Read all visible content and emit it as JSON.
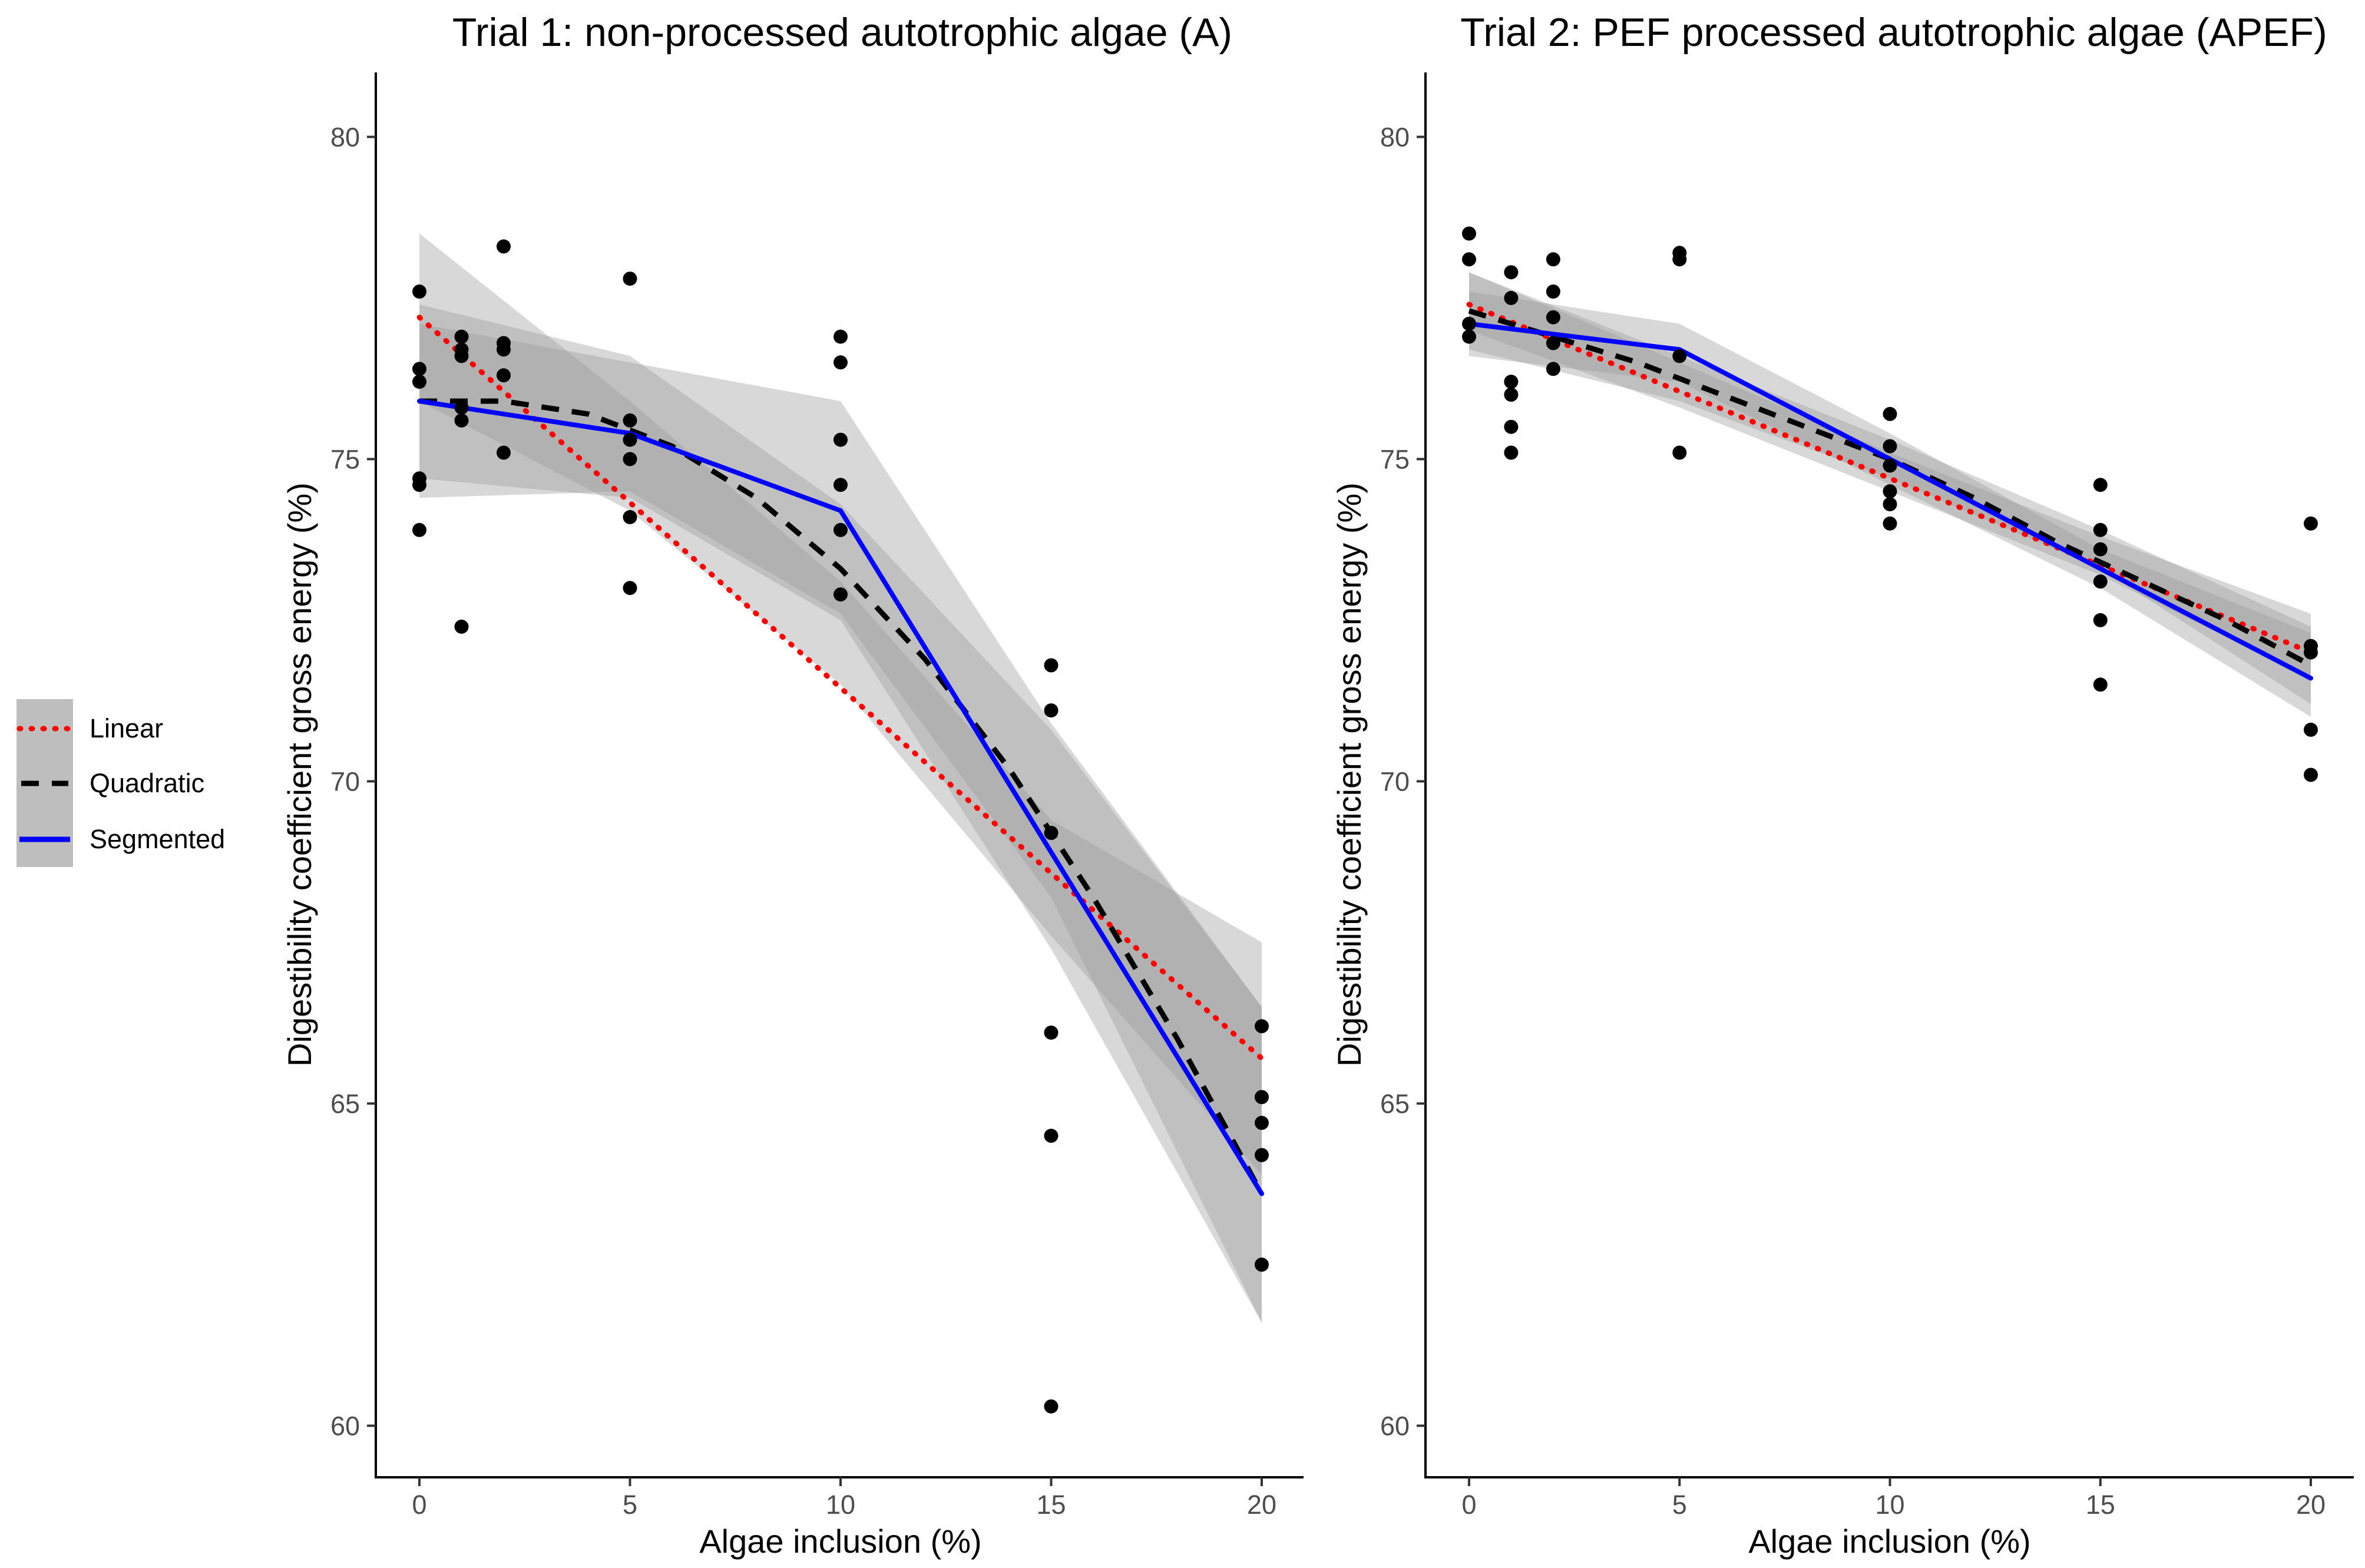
{
  "chart_data": [
    {
      "type": "scatter",
      "title": "Trial 1: non-processed autotrophic algae (A)",
      "xlabel": "Algae inclusion (%)",
      "ylabel": "Digestibility coefficient gross energy (%)",
      "xlim": [
        -1,
        21
      ],
      "ylim": [
        59.2,
        81
      ],
      "xticks": [
        0,
        5,
        10,
        15,
        20
      ],
      "yticks": [
        60,
        65,
        70,
        75,
        80
      ],
      "points": [
        {
          "x": 0,
          "y": 77.6
        },
        {
          "x": 0,
          "y": 76.4
        },
        {
          "x": 0,
          "y": 76.2
        },
        {
          "x": 0,
          "y": 74.7
        },
        {
          "x": 0,
          "y": 74.6
        },
        {
          "x": 0,
          "y": 73.9
        },
        {
          "x": 1,
          "y": 76.9
        },
        {
          "x": 1,
          "y": 76.7
        },
        {
          "x": 1,
          "y": 76.6
        },
        {
          "x": 1,
          "y": 75.8
        },
        {
          "x": 1,
          "y": 75.6
        },
        {
          "x": 1,
          "y": 72.4
        },
        {
          "x": 2,
          "y": 78.3
        },
        {
          "x": 2,
          "y": 76.8
        },
        {
          "x": 2,
          "y": 76.7
        },
        {
          "x": 2,
          "y": 76.3
        },
        {
          "x": 2,
          "y": 75.1
        },
        {
          "x": 5,
          "y": 77.8
        },
        {
          "x": 5,
          "y": 75.6
        },
        {
          "x": 5,
          "y": 75.3
        },
        {
          "x": 5,
          "y": 75.0
        },
        {
          "x": 5,
          "y": 74.1
        },
        {
          "x": 5,
          "y": 73.0
        },
        {
          "x": 10,
          "y": 76.9
        },
        {
          "x": 10,
          "y": 76.5
        },
        {
          "x": 10,
          "y": 75.3
        },
        {
          "x": 10,
          "y": 74.6
        },
        {
          "x": 10,
          "y": 73.9
        },
        {
          "x": 10,
          "y": 72.9
        },
        {
          "x": 15,
          "y": 71.8
        },
        {
          "x": 15,
          "y": 71.1
        },
        {
          "x": 15,
          "y": 69.2
        },
        {
          "x": 15,
          "y": 66.1
        },
        {
          "x": 15,
          "y": 64.5
        },
        {
          "x": 15,
          "y": 60.3
        },
        {
          "x": 20,
          "y": 66.2
        },
        {
          "x": 20,
          "y": 65.1
        },
        {
          "x": 20,
          "y": 64.7
        },
        {
          "x": 20,
          "y": 64.2
        },
        {
          "x": 20,
          "y": 62.5
        }
      ],
      "series": [
        {
          "name": "Linear",
          "style": "dotted",
          "color": "#ff0000",
          "x": [
            0,
            20
          ],
          "y": [
            77.2,
            65.7
          ]
        },
        {
          "name": "Quadratic",
          "style": "dashed",
          "color": "#000000",
          "x": [
            0,
            2,
            4,
            6,
            8,
            10,
            12,
            14,
            16,
            18,
            20
          ],
          "y": [
            75.9,
            75.9,
            75.7,
            75.2,
            74.4,
            73.3,
            71.9,
            70.2,
            68.2,
            66.0,
            63.6
          ]
        },
        {
          "name": "Segmented",
          "style": "solid",
          "color": "#0000ff",
          "x": [
            0,
            5,
            10,
            20
          ],
          "y": [
            75.9,
            75.4,
            74.2,
            63.6
          ]
        }
      ],
      "confidence_bands": [
        {
          "series": "Linear",
          "x": [
            0,
            5,
            10,
            15,
            20
          ],
          "lower": [
            75.9,
            74.2,
            71.5,
            67.6,
            63.9
          ],
          "upper": [
            78.5,
            75.9,
            73.1,
            69.4,
            67.5
          ]
        },
        {
          "series": "Quadratic",
          "x": [
            0,
            5,
            10,
            15,
            20
          ],
          "lower": [
            74.4,
            74.5,
            72.6,
            68.2,
            61.6
          ],
          "upper": [
            77.4,
            76.6,
            74.3,
            70.8,
            66.5
          ]
        },
        {
          "series": "Segmented",
          "x": [
            0,
            5,
            10,
            15,
            20
          ],
          "lower": [
            74.7,
            74.4,
            72.5,
            67.4,
            61.6
          ],
          "upper": [
            77.1,
            76.5,
            75.9,
            70.9,
            66.5
          ]
        }
      ]
    },
    {
      "type": "scatter",
      "title": "Trial 2: PEF processed autotrophic algae (APEF)",
      "xlabel": "Algae inclusion (%)",
      "ylabel": "Digestibility coefficient gross energy (%)",
      "xlim": [
        -1,
        21
      ],
      "ylim": [
        59.2,
        81
      ],
      "xticks": [
        0,
        5,
        10,
        15,
        20
      ],
      "yticks": [
        60,
        65,
        70,
        75,
        80
      ],
      "points": [
        {
          "x": 0,
          "y": 78.5
        },
        {
          "x": 0,
          "y": 78.1
        },
        {
          "x": 0,
          "y": 77.1
        },
        {
          "x": 0,
          "y": 76.9
        },
        {
          "x": 1,
          "y": 77.9
        },
        {
          "x": 1,
          "y": 77.5
        },
        {
          "x": 1,
          "y": 76.2
        },
        {
          "x": 1,
          "y": 76.0
        },
        {
          "x": 1,
          "y": 75.5
        },
        {
          "x": 1,
          "y": 75.1
        },
        {
          "x": 2,
          "y": 78.1
        },
        {
          "x": 2,
          "y": 77.6
        },
        {
          "x": 2,
          "y": 77.2
        },
        {
          "x": 2,
          "y": 76.8
        },
        {
          "x": 2,
          "y": 76.4
        },
        {
          "x": 5,
          "y": 78.2
        },
        {
          "x": 5,
          "y": 78.1
        },
        {
          "x": 5,
          "y": 76.6
        },
        {
          "x": 5,
          "y": 75.1
        },
        {
          "x": 10,
          "y": 75.7
        },
        {
          "x": 10,
          "y": 75.2
        },
        {
          "x": 10,
          "y": 74.9
        },
        {
          "x": 10,
          "y": 74.5
        },
        {
          "x": 10,
          "y": 74.3
        },
        {
          "x": 10,
          "y": 74.0
        },
        {
          "x": 15,
          "y": 74.6
        },
        {
          "x": 15,
          "y": 73.9
        },
        {
          "x": 15,
          "y": 73.6
        },
        {
          "x": 15,
          "y": 73.1
        },
        {
          "x": 15,
          "y": 72.5
        },
        {
          "x": 15,
          "y": 71.5
        },
        {
          "x": 20,
          "y": 74.0
        },
        {
          "x": 20,
          "y": 72.1
        },
        {
          "x": 20,
          "y": 72.0
        },
        {
          "x": 20,
          "y": 70.8
        },
        {
          "x": 20,
          "y": 70.1
        }
      ],
      "series": [
        {
          "name": "Linear",
          "style": "dotted",
          "color": "#ff0000",
          "x": [
            0,
            20
          ],
          "y": [
            77.4,
            72.0
          ]
        },
        {
          "name": "Quadratic",
          "style": "dashed",
          "color": "#000000",
          "x": [
            0,
            2,
            4,
            6,
            8,
            10,
            12,
            14,
            16,
            18,
            20
          ],
          "y": [
            77.3,
            76.9,
            76.5,
            76.0,
            75.5,
            75.0,
            74.4,
            73.7,
            73.1,
            72.5,
            71.8
          ]
        },
        {
          "name": "Segmented",
          "style": "solid",
          "color": "#0000ff",
          "x": [
            0,
            5,
            20
          ],
          "y": [
            77.1,
            76.7,
            71.6
          ]
        }
      ],
      "confidence_bands": [
        {
          "series": "Linear",
          "x": [
            0,
            5,
            10,
            15,
            20
          ],
          "lower": [
            77.0,
            75.8,
            74.5,
            73.2,
            71.6
          ],
          "upper": [
            77.9,
            76.5,
            75.1,
            73.8,
            72.6
          ]
        },
        {
          "series": "Quadratic",
          "x": [
            0,
            5,
            10,
            15,
            20
          ],
          "lower": [
            76.7,
            75.9,
            74.7,
            73.3,
            71.2
          ],
          "upper": [
            77.9,
            76.6,
            75.3,
            73.9,
            72.4
          ]
        },
        {
          "series": "Segmented",
          "x": [
            0,
            5,
            10,
            15,
            20
          ],
          "lower": [
            76.6,
            76.2,
            74.6,
            73.0,
            71.0
          ],
          "upper": [
            77.6,
            77.1,
            75.4,
            73.6,
            72.3
          ]
        }
      ]
    }
  ],
  "legend": {
    "items": [
      {
        "label": "Linear",
        "color": "#ff0000",
        "style": "dotted"
      },
      {
        "label": "Quadratic",
        "color": "#000000",
        "style": "dashed"
      },
      {
        "label": "Segmented",
        "color": "#0000ff",
        "style": "solid"
      }
    ]
  }
}
